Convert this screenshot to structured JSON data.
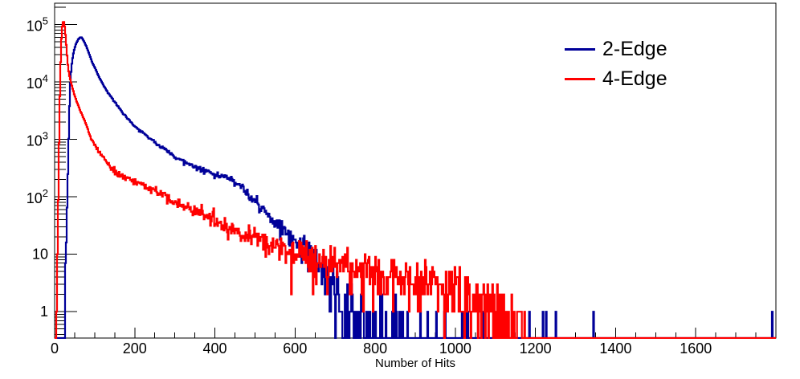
{
  "chart_data": {
    "type": "line",
    "subtype": "step-histogram",
    "title": "",
    "xlabel": "Number of Hits",
    "ylabel": "",
    "grid": false,
    "background": "#ffffff",
    "frame_color": "#000000",
    "x_axis": {
      "min": 0,
      "max": 1800,
      "major_tick_step": 200,
      "minor_tick_step": 50,
      "tick_labels": [
        "0",
        "200",
        "400",
        "600",
        "800",
        "1000",
        "1200",
        "1400",
        "1600"
      ]
    },
    "y_axis": {
      "scale": "log",
      "min": 0.348,
      "max": 233000,
      "major_ticks": [
        1,
        10,
        100,
        1000,
        10000,
        100000
      ],
      "tick_labels": [
        "1",
        "10",
        "10^2",
        "10^3",
        "10^4",
        "10^5"
      ]
    },
    "legend": {
      "position": "top-right",
      "entries": [
        {
          "label": "2-Edge",
          "color": "#000099"
        },
        {
          "label": "4-Edge",
          "color": "#ff0000"
        }
      ]
    },
    "series": [
      {
        "name": "2-Edge",
        "color": "#000099",
        "line_width": 2.2,
        "bin_width": 2,
        "seed": 20240642,
        "peak": {
          "x": 65,
          "y": 60000
        },
        "envelope": [
          [
            22,
            0
          ],
          [
            24,
            0.4
          ],
          [
            26,
            2
          ],
          [
            28,
            8
          ],
          [
            30,
            30
          ],
          [
            32,
            120
          ],
          [
            34,
            500
          ],
          [
            36,
            2000
          ],
          [
            38,
            7000
          ],
          [
            40,
            13000
          ],
          [
            44,
            24000
          ],
          [
            48,
            34000
          ],
          [
            52,
            43000
          ],
          [
            56,
            50000
          ],
          [
            60,
            56000
          ],
          [
            64,
            59500
          ],
          [
            67,
            60000
          ],
          [
            70,
            56000
          ],
          [
            75,
            48000
          ],
          [
            80,
            40000
          ],
          [
            85,
            32500
          ],
          [
            90,
            26000
          ],
          [
            95,
            21000
          ],
          [
            100,
            18000
          ],
          [
            110,
            12500
          ],
          [
            120,
            9200
          ],
          [
            130,
            7000
          ],
          [
            140,
            5600
          ],
          [
            150,
            4500
          ],
          [
            160,
            3600
          ],
          [
            170,
            2900
          ],
          [
            180,
            2400
          ],
          [
            190,
            2000
          ],
          [
            200,
            1700
          ],
          [
            215,
            1380
          ],
          [
            230,
            1130
          ],
          [
            245,
            950
          ],
          [
            260,
            800
          ],
          [
            275,
            670
          ],
          [
            290,
            560
          ],
          [
            305,
            480
          ],
          [
            320,
            420
          ],
          [
            335,
            370
          ],
          [
            350,
            330
          ],
          [
            365,
            300
          ],
          [
            380,
            272
          ],
          [
            395,
            252
          ],
          [
            410,
            242
          ],
          [
            425,
            230
          ],
          [
            440,
            205
          ],
          [
            455,
            170
          ],
          [
            470,
            136
          ],
          [
            485,
            106
          ],
          [
            500,
            81
          ],
          [
            515,
            63
          ],
          [
            530,
            49
          ],
          [
            545,
            39
          ],
          [
            560,
            31
          ],
          [
            575,
            25
          ],
          [
            590,
            20.5
          ],
          [
            605,
            17
          ],
          [
            620,
            13.5
          ],
          [
            635,
            11
          ],
          [
            650,
            8.6
          ],
          [
            665,
            6.6
          ],
          [
            680,
            4.8
          ],
          [
            695,
            3.2
          ],
          [
            710,
            2.2
          ],
          [
            725,
            1.5
          ],
          [
            740,
            1.05
          ],
          [
            755,
            0.78
          ],
          [
            775,
            0.6
          ],
          [
            800,
            0.45
          ],
          [
            830,
            0.3
          ],
          [
            865,
            0.2
          ],
          [
            905,
            0.14
          ],
          [
            950,
            0.1
          ],
          [
            1000,
            0.07
          ],
          [
            1060,
            0.05
          ],
          [
            1120,
            0.035
          ],
          [
            1164,
            0.03
          ],
          [
            1166,
            0
          ]
        ],
        "unit_spikes": [
          1184,
          1218,
          1226,
          1250,
          1345,
          1791
        ]
      },
      {
        "name": "4-Edge",
        "color": "#ff0000",
        "line_width": 2.2,
        "bin_width": 2,
        "seed": 777,
        "peak": {
          "x": 22,
          "y": 115000
        },
        "envelope": [
          [
            3,
            0
          ],
          [
            4,
            0.5
          ],
          [
            6,
            3
          ],
          [
            8,
            30
          ],
          [
            10,
            300
          ],
          [
            12,
            2500
          ],
          [
            14,
            12000
          ],
          [
            16,
            40000
          ],
          [
            18,
            80000
          ],
          [
            20,
            105000
          ],
          [
            22,
            115000
          ],
          [
            24,
            105000
          ],
          [
            26,
            80000
          ],
          [
            28,
            55000
          ],
          [
            30,
            35000
          ],
          [
            33,
            20000
          ],
          [
            36,
            13500
          ],
          [
            40,
            10300
          ],
          [
            45,
            7600
          ],
          [
            50,
            5800
          ],
          [
            56,
            4400
          ],
          [
            63,
            3300
          ],
          [
            70,
            2550
          ],
          [
            78,
            1850
          ],
          [
            86,
            1300
          ],
          [
            92,
            1020
          ],
          [
            100,
            800
          ],
          [
            112,
            595
          ],
          [
            124,
            445
          ],
          [
            136,
            345
          ],
          [
            150,
            272
          ],
          [
            165,
            232
          ],
          [
            180,
            208
          ],
          [
            200,
            182
          ],
          [
            220,
            158
          ],
          [
            240,
            136
          ],
          [
            260,
            116
          ],
          [
            280,
            99
          ],
          [
            300,
            84
          ],
          [
            325,
            68
          ],
          [
            350,
            56
          ],
          [
            375,
            46
          ],
          [
            400,
            38.5
          ],
          [
            430,
            31
          ],
          [
            460,
            25.5
          ],
          [
            490,
            21
          ],
          [
            520,
            17.3
          ],
          [
            550,
            14.4
          ],
          [
            580,
            12.2
          ],
          [
            610,
            10.4
          ],
          [
            640,
            9.0
          ],
          [
            670,
            7.9
          ],
          [
            700,
            7.0
          ],
          [
            730,
            6.3
          ],
          [
            760,
            5.6
          ],
          [
            790,
            5.05
          ],
          [
            820,
            4.6
          ],
          [
            850,
            4.15
          ],
          [
            880,
            3.75
          ],
          [
            910,
            3.4
          ],
          [
            940,
            3.1
          ],
          [
            970,
            2.8
          ],
          [
            1000,
            2.5
          ],
          [
            1030,
            2.1
          ],
          [
            1060,
            1.7
          ],
          [
            1090,
            1.25
          ],
          [
            1120,
            0.85
          ],
          [
            1145,
            0.55
          ],
          [
            1165,
            0.35
          ],
          [
            1178,
            0.18
          ],
          [
            1184,
            0.06
          ],
          [
            1186,
            0
          ]
        ],
        "unit_spikes": []
      }
    ]
  }
}
